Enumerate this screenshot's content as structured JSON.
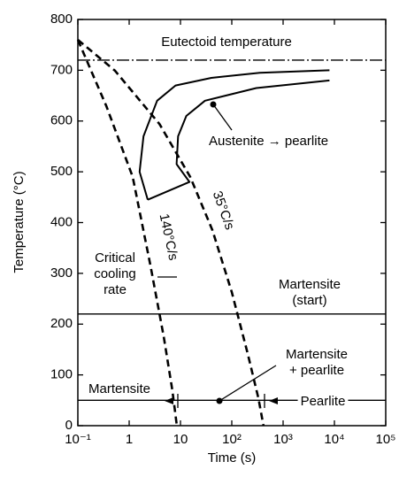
{
  "chart_data": {
    "type": "line",
    "xlabel": "Time (s)",
    "ylabel": "Temperature (°C)",
    "xscale": "log",
    "xlim": [
      0.1,
      100000
    ],
    "xticks": [
      {
        "value": 0.1,
        "label": "10⁻¹"
      },
      1,
      10,
      {
        "value": 100,
        "label": "10²"
      },
      {
        "value": 1000,
        "label": "10³"
      },
      {
        "value": 10000,
        "label": "10⁴"
      },
      {
        "value": 100000,
        "label": "10⁵"
      }
    ],
    "ylim": [
      0,
      800
    ],
    "yticks": [
      0,
      100,
      200,
      300,
      400,
      500,
      600,
      700,
      800
    ],
    "hlines": [
      720,
      220,
      50
    ],
    "series": [
      {
        "color": "#000",
        "dashed": true,
        "x": [
          0.1,
          0.36,
          1.17,
          2.6,
          4.7,
          6.9,
          8.5
        ],
        "values": [
          760,
          629,
          490,
          315,
          176,
          71,
          0
        ]
      },
      {
        "color": "#000",
        "dashed": true,
        "x": [
          0.1,
          0.53,
          3.9,
          15.5,
          42,
          100,
          205,
          330,
          415
        ],
        "values": [
          760,
          699,
          594,
          490,
          385,
          263,
          141,
          54,
          0
        ]
      },
      {
        "color": "#000",
        "dashed": false,
        "x": [
          2.3,
          1.6,
          1.9,
          3.5,
          8,
          40,
          350,
          8000
        ],
        "values": [
          445,
          500,
          570,
          640,
          670,
          685,
          695,
          700
        ]
      },
      {
        "color": "#000",
        "dashed": false,
        "x": [
          2.3,
          15,
          8.4,
          9,
          13,
          30,
          300,
          8000
        ],
        "values": [
          445,
          480,
          515,
          570,
          610,
          640,
          665,
          680
        ]
      }
    ],
    "annotations": [
      "Eutectoid temperature",
      "Austenite → pearlite",
      "35°C/s",
      "140°C/s",
      [
        "Critical",
        "cooling",
        "rate"
      ],
      [
        "Martensite",
        "(start)"
      ],
      [
        "Martensite",
        "+ pearlite"
      ],
      "Martensite",
      "Pearlite"
    ]
  }
}
